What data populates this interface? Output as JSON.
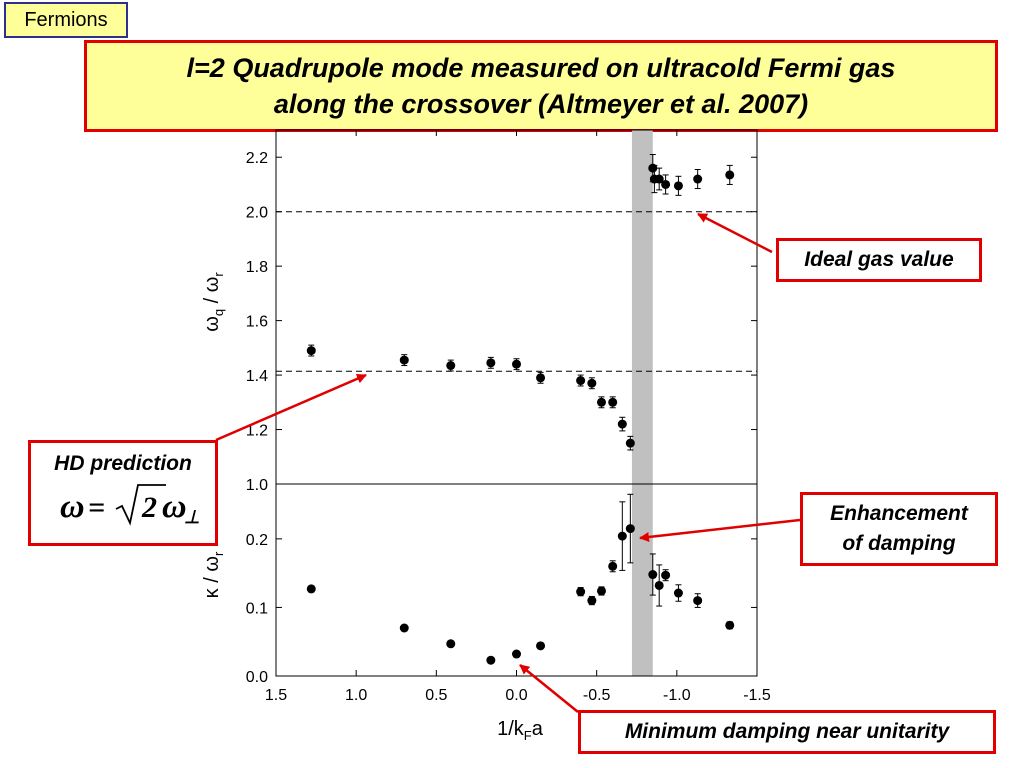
{
  "header": {
    "tag": "Fermions",
    "title_line1": "l=2 Quadrupole mode measured on ultracold Fermi gas",
    "title_line2": "along the crossover (Altmeyer et al. 2007)"
  },
  "callouts": {
    "ideal_gas": "Ideal gas value",
    "hd_prediction": "HD prediction",
    "enhancement_line1": "Enhancement",
    "enhancement_line2": "of damping",
    "minimum_damping": "Minimum damping near unitarity"
  },
  "colors": {
    "title_bg": "#ffff99",
    "callout_border": "#e00000",
    "arrow": "#e00000",
    "shaded_band": "#c0c0c0"
  },
  "chart_data": [
    {
      "type": "scatter",
      "ylabel": "ωq / ωr",
      "xlim": [
        1.5,
        -1.5
      ],
      "ylim": [
        1.0,
        2.3
      ],
      "y_ticks": [
        "1.0",
        "1.2",
        "1.4",
        "1.6",
        "1.8",
        "2.0",
        "2.2"
      ],
      "reference_lines": [
        1.414,
        2.0
      ],
      "shaded_x_range": [
        -0.72,
        -0.85
      ],
      "points": [
        {
          "x": 1.28,
          "y": 1.49,
          "err": 0.02
        },
        {
          "x": 0.7,
          "y": 1.455,
          "err": 0.02
        },
        {
          "x": 0.41,
          "y": 1.435,
          "err": 0.02
        },
        {
          "x": 0.16,
          "y": 1.445,
          "err": 0.02
        },
        {
          "x": 0.0,
          "y": 1.44,
          "err": 0.02
        },
        {
          "x": -0.15,
          "y": 1.39,
          "err": 0.02
        },
        {
          "x": -0.4,
          "y": 1.38,
          "err": 0.02
        },
        {
          "x": -0.47,
          "y": 1.37,
          "err": 0.02
        },
        {
          "x": -0.53,
          "y": 1.3,
          "err": 0.02
        },
        {
          "x": -0.6,
          "y": 1.3,
          "err": 0.02
        },
        {
          "x": -0.66,
          "y": 1.22,
          "err": 0.025
        },
        {
          "x": -0.71,
          "y": 1.15,
          "err": 0.025
        },
        {
          "x": -0.85,
          "y": 2.16,
          "err": 0.05
        },
        {
          "x": -0.86,
          "y": 2.12,
          "err": 0.05
        },
        {
          "x": -0.89,
          "y": 2.12,
          "err": 0.04
        },
        {
          "x": -0.93,
          "y": 2.1,
          "err": 0.035
        },
        {
          "x": -1.01,
          "y": 2.095,
          "err": 0.035
        },
        {
          "x": -1.13,
          "y": 2.12,
          "err": 0.035
        },
        {
          "x": -1.33,
          "y": 2.135,
          "err": 0.035
        }
      ]
    },
    {
      "type": "scatter",
      "ylabel": "κ / ωr",
      "xlabel": "1/kFa",
      "xlim": [
        1.5,
        -1.5
      ],
      "ylim": [
        0.0,
        0.28
      ],
      "x_ticks": [
        "1.5",
        "1.0",
        "0.5",
        "0.0",
        "-0.5",
        "-1.0",
        "-1.5"
      ],
      "y_ticks": [
        "0.0",
        "0.1",
        "0.2"
      ],
      "shaded_x_range": [
        -0.72,
        -0.85
      ],
      "points": [
        {
          "x": 1.28,
          "y": 0.127,
          "err": 0.004
        },
        {
          "x": 0.7,
          "y": 0.07,
          "err": 0.004
        },
        {
          "x": 0.41,
          "y": 0.047,
          "err": 0.003
        },
        {
          "x": 0.16,
          "y": 0.023,
          "err": 0.003
        },
        {
          "x": 0.0,
          "y": 0.032,
          "err": 0.003
        },
        {
          "x": -0.15,
          "y": 0.044,
          "err": 0.004
        },
        {
          "x": -0.4,
          "y": 0.123,
          "err": 0.006
        },
        {
          "x": -0.47,
          "y": 0.11,
          "err": 0.006
        },
        {
          "x": -0.53,
          "y": 0.124,
          "err": 0.006
        },
        {
          "x": -0.6,
          "y": 0.16,
          "err": 0.008
        },
        {
          "x": -0.66,
          "y": 0.204,
          "err": 0.05
        },
        {
          "x": -0.71,
          "y": 0.215,
          "err": 0.05
        },
        {
          "x": -0.85,
          "y": 0.148,
          "err": 0.03
        },
        {
          "x": -0.89,
          "y": 0.132,
          "err": 0.03
        },
        {
          "x": -0.93,
          "y": 0.147,
          "err": 0.008
        },
        {
          "x": -1.01,
          "y": 0.121,
          "err": 0.012
        },
        {
          "x": -1.13,
          "y": 0.11,
          "err": 0.01
        },
        {
          "x": -1.33,
          "y": 0.074,
          "err": 0.005
        }
      ]
    }
  ]
}
